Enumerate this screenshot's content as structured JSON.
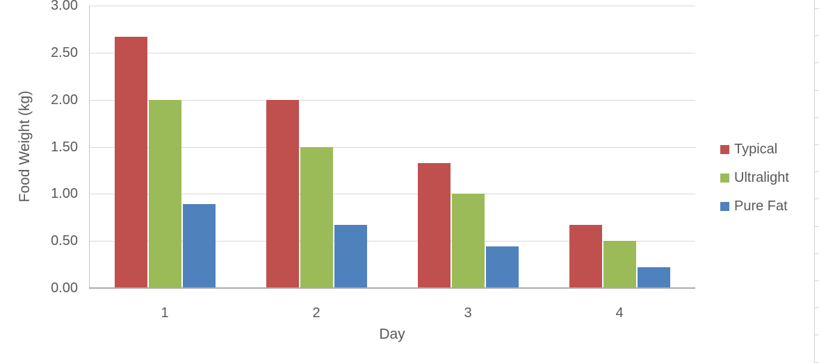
{
  "chart_data": {
    "type": "bar",
    "title": "",
    "xlabel": "Day",
    "ylabel": "Food Weight (kg)",
    "categories": [
      "1",
      "2",
      "3",
      "4"
    ],
    "series": [
      {
        "name": "Typical",
        "color": "#c0504d",
        "values": [
          2.67,
          2.0,
          1.33,
          0.67
        ]
      },
      {
        "name": "Ultralight",
        "color": "#9bbb59",
        "values": [
          2.0,
          1.5,
          1.0,
          0.5
        ]
      },
      {
        "name": "Pure Fat",
        "color": "#4f81bd",
        "values": [
          0.89,
          0.67,
          0.44,
          0.22
        ]
      }
    ],
    "ylim": [
      0,
      3
    ],
    "ytick_step": 0.5,
    "ytick_labels": [
      "0.00",
      "0.50",
      "1.00",
      "1.50",
      "2.00",
      "2.50",
      "3.00"
    ],
    "grid": true,
    "legend_position": "right",
    "background": "#ffffff"
  }
}
